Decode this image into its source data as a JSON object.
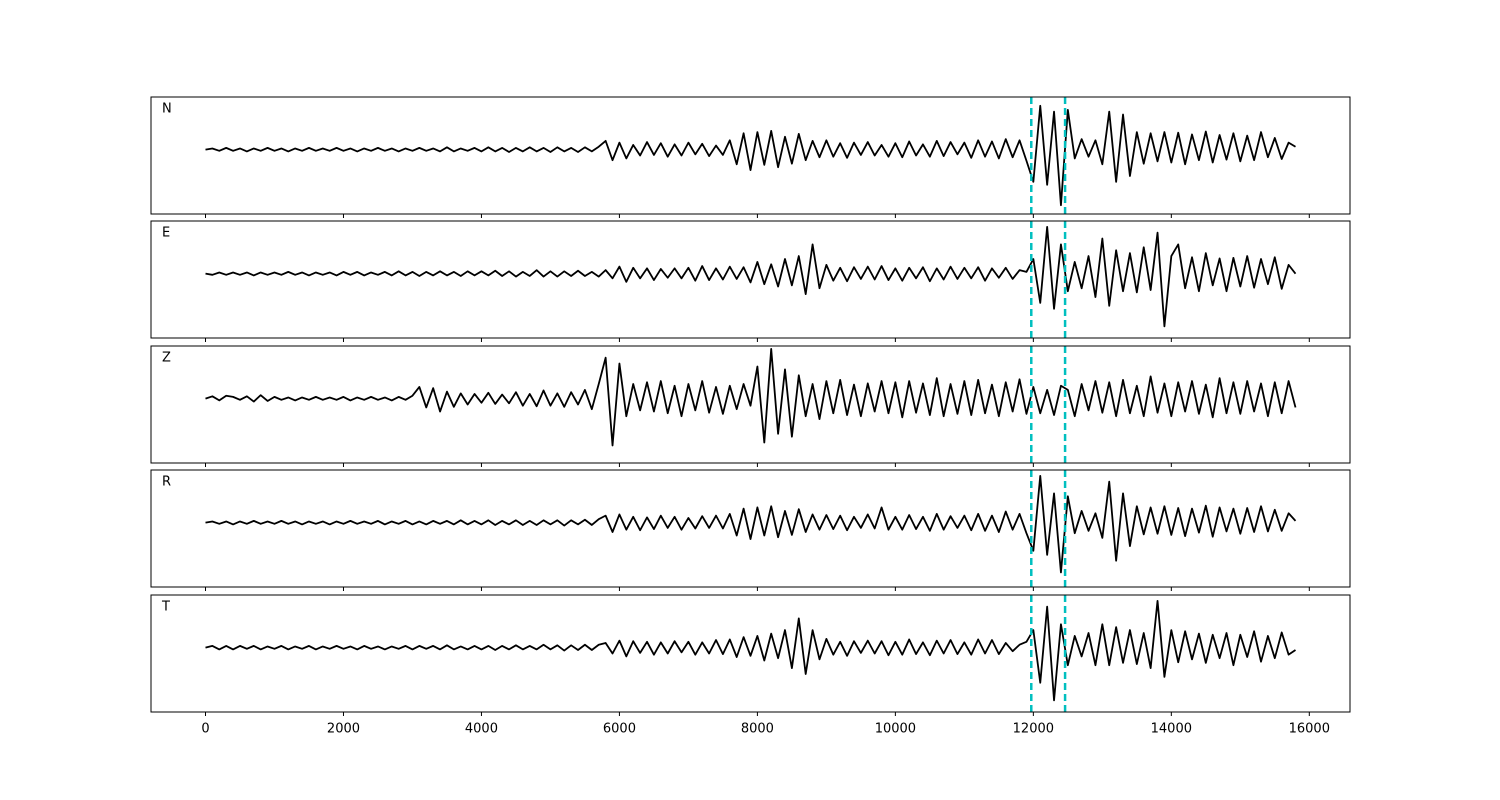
{
  "chart_data": {
    "type": "line",
    "layout": "stacked",
    "x": [
      0,
      100,
      200,
      300,
      400,
      500,
      600,
      700,
      800,
      900,
      1000,
      1100,
      1200,
      1300,
      1400,
      1500,
      1600,
      1700,
      1800,
      1900,
      2000,
      2100,
      2200,
      2300,
      2400,
      2500,
      2600,
      2700,
      2800,
      2900,
      3000,
      3100,
      3200,
      3300,
      3400,
      3500,
      3600,
      3700,
      3800,
      3900,
      4000,
      4100,
      4200,
      4300,
      4400,
      4500,
      4600,
      4700,
      4800,
      4900,
      5000,
      5100,
      5200,
      5300,
      5400,
      5500,
      5600,
      5700,
      5800,
      5900,
      6000,
      6100,
      6200,
      6300,
      6400,
      6500,
      6600,
      6700,
      6800,
      6900,
      7000,
      7100,
      7200,
      7300,
      7400,
      7500,
      7600,
      7700,
      7800,
      7900,
      8000,
      8100,
      8200,
      8300,
      8400,
      8500,
      8600,
      8700,
      8800,
      8900,
      9000,
      9100,
      9200,
      9300,
      9400,
      9500,
      9600,
      9700,
      9800,
      9900,
      10000,
      10100,
      10200,
      10300,
      10400,
      10500,
      10600,
      10700,
      10800,
      10900,
      11000,
      11100,
      11200,
      11300,
      11400,
      11500,
      11600,
      11700,
      11800,
      11900,
      12000,
      12100,
      12200,
      12300,
      12400,
      12500,
      12600,
      12700,
      12800,
      12900,
      13000,
      13100,
      13200,
      13300,
      13400,
      13500,
      13600,
      13700,
      13800,
      13900,
      14000,
      14100,
      14200,
      14300,
      14400,
      14500,
      14600,
      14700,
      14800,
      14900,
      15000,
      15100,
      15200,
      15300,
      15400,
      15500,
      15600,
      15700,
      15800
    ],
    "series": [
      {
        "name": "N",
        "color": "#000000",
        "values": [
          0,
          0.2,
          -0.2,
          0.3,
          -0.2,
          0.2,
          -0.3,
          0.2,
          -0.2,
          0.3,
          -0.2,
          0.2,
          -0.3,
          0.2,
          -0.2,
          0.3,
          -0.2,
          0.2,
          -0.2,
          0.3,
          -0.2,
          0.2,
          -0.3,
          0.2,
          -0.2,
          0.3,
          -0.2,
          0.2,
          -0.3,
          0.2,
          -0.2,
          0.3,
          -0.2,
          0.2,
          -0.3,
          0.4,
          -0.3,
          0.2,
          -0.2,
          0.3,
          -0.3,
          0.4,
          -0.3,
          0.3,
          -0.4,
          0.3,
          -0.3,
          0.4,
          -0.3,
          0.3,
          -0.4,
          0.4,
          -0.3,
          0.3,
          -0.4,
          0.4,
          -0.3,
          0.5,
          1.5,
          -1.8,
          1.2,
          -1.5,
          0.8,
          -1,
          1.3,
          -0.9,
          1.1,
          -1.2,
          0.9,
          -1,
          1.2,
          -0.8,
          1,
          -1.1,
          0.7,
          -0.9,
          1.6,
          -2.5,
          2.8,
          -3.5,
          3,
          -2.6,
          3.2,
          -3,
          2.2,
          -2.4,
          2.7,
          -1.8,
          1.5,
          -1.3,
          1.6,
          -1.2,
          1.1,
          -1.4,
          1.2,
          -0.9,
          1.3,
          -1,
          0.8,
          -1.2,
          1.1,
          -1.3,
          1.4,
          -1,
          0.9,
          -1.2,
          1.5,
          -1.1,
          1.3,
          -0.8,
          1.2,
          -1.4,
          1.6,
          -1.2,
          1.4,
          -1.5,
          1.8,
          -1.3,
          1.6,
          -1.9,
          -5.5,
          7.5,
          -6,
          6.5,
          -9.5,
          6.8,
          -1.5,
          1.8,
          -1.2,
          1.6,
          -2.5,
          6.5,
          -5.5,
          6,
          -4.5,
          3,
          -2.4,
          2.8,
          -2,
          3,
          -2.2,
          2.9,
          -2.5,
          2.6,
          -1.8,
          3.1,
          -2.2,
          2.5,
          -1.7,
          2.8,
          -2,
          2.4,
          -1.8,
          3,
          -1.3,
          2,
          -1.6,
          1.2,
          0.5
        ]
      },
      {
        "name": "E",
        "color": "#000000",
        "values": [
          0,
          -0.2,
          0.2,
          -0.2,
          0.2,
          -0.2,
          0.2,
          -0.3,
          0.2,
          -0.2,
          0.2,
          -0.2,
          0.3,
          -0.2,
          0.2,
          -0.3,
          0.2,
          -0.2,
          0.2,
          -0.3,
          0.3,
          -0.2,
          0.3,
          -0.3,
          0.2,
          -0.2,
          0.3,
          -0.3,
          0.4,
          -0.3,
          0.3,
          -0.4,
          0.3,
          -0.3,
          0.4,
          -0.3,
          0.3,
          -0.4,
          0.4,
          -0.3,
          0.4,
          -0.3,
          0.5,
          -0.4,
          0.4,
          -0.5,
          0.3,
          -0.4,
          0.6,
          -0.5,
          0.4,
          -0.5,
          0.4,
          -0.4,
          0.5,
          -0.4,
          0.3,
          -0.5,
          0.6,
          -0.8,
          1.2,
          -1.4,
          1,
          -0.8,
          0.9,
          -1.1,
          0.8,
          -0.7,
          0.9,
          -0.8,
          1,
          -1.2,
          1.3,
          -1.1,
          0.9,
          -1,
          1.2,
          -0.9,
          1.1,
          -1.5,
          2,
          -1.8,
          1.6,
          -2.2,
          2.5,
          -2,
          3,
          -3.5,
          5,
          -2.5,
          1.5,
          -1.2,
          1,
          -1.3,
          1.1,
          -0.9,
          1.2,
          -1,
          1.3,
          -1.1,
          0.9,
          -1.2,
          1,
          -0.8,
          1.1,
          -1.3,
          0.9,
          -1,
          1.2,
          -0.9,
          1,
          -0.8,
          1.1,
          -1.2,
          0.9,
          -0.7,
          1,
          -0.9,
          0.6,
          0.3,
          2.5,
          -5,
          8,
          -6,
          5,
          -3,
          2,
          -2.5,
          3,
          -4,
          6,
          -5.5,
          4,
          -3,
          3.5,
          -3.2,
          4.5,
          -2.8,
          7,
          -9,
          3,
          5,
          -2.5,
          2.8,
          -3,
          3.5,
          -2,
          2.6,
          -3,
          2.7,
          -2.2,
          3,
          -2.4,
          2.5,
          -1.8,
          2.8,
          -2.6,
          1.5,
          0
        ]
      },
      {
        "name": "Z",
        "color": "#000000",
        "values": [
          0,
          0.4,
          -0.3,
          0.5,
          0.3,
          -0.2,
          0.4,
          -0.5,
          0.6,
          -0.4,
          0.3,
          -0.2,
          0.2,
          -0.3,
          0.2,
          -0.2,
          0.3,
          -0.2,
          0.2,
          -0.2,
          0.3,
          -0.3,
          0.2,
          -0.2,
          0.3,
          -0.2,
          0.2,
          -0.3,
          0.3,
          -0.2,
          0.5,
          2,
          -1.5,
          1.8,
          -2.2,
          1.2,
          -1.4,
          0.9,
          -1,
          0.8,
          -0.7,
          1,
          -0.9,
          0.7,
          -0.8,
          1.1,
          -1.2,
          0.8,
          -1.3,
          1.4,
          -1.2,
          0.9,
          -1.4,
          1.1,
          -1,
          1.5,
          -1.8,
          2.5,
          7,
          -8,
          6,
          -3,
          2.5,
          -2,
          2.8,
          -2.2,
          3,
          -2.5,
          2.2,
          -3,
          2.5,
          -2,
          3,
          -2.4,
          2,
          -2.6,
          2.2,
          -1.8,
          2.5,
          -1.2,
          5.5,
          -7.5,
          8.5,
          -6,
          5,
          -6.5,
          4,
          -3,
          2.5,
          -3.5,
          3,
          -2.5,
          3.2,
          -2.8,
          2.4,
          -3,
          2.6,
          -2.2,
          3,
          -2.5,
          2.8,
          -3.2,
          3,
          -2.4,
          2.6,
          -2.8,
          3.5,
          -3,
          2.5,
          -2.6,
          3,
          -2.8,
          3.2,
          -2.5,
          2.4,
          -3,
          2.8,
          -2.2,
          3.3,
          -2.6,
          2,
          -2.5,
          1.5,
          -2.8,
          2.2,
          1.5,
          -3,
          2.5,
          -2,
          3,
          -2.4,
          2.8,
          -3,
          3.2,
          -2.5,
          2.2,
          -3,
          3.8,
          -2.4,
          2.6,
          -3,
          2.8,
          -2.2,
          3,
          -2.6,
          2.4,
          -3.2,
          3.5,
          -2.5,
          2.8,
          -2.6,
          3,
          -2.2,
          2.6,
          -3,
          2.8,
          -2.5,
          3,
          -1.5
        ]
      },
      {
        "name": "R",
        "color": "#000000",
        "values": [
          0,
          0.2,
          -0.2,
          0.2,
          -0.3,
          0.2,
          -0.2,
          0.3,
          -0.2,
          0.2,
          -0.2,
          0.3,
          -0.2,
          0.2,
          -0.3,
          0.2,
          -0.2,
          0.2,
          -0.3,
          0.2,
          -0.2,
          0.3,
          -0.2,
          0.2,
          -0.2,
          0.3,
          -0.3,
          0.2,
          -0.2,
          0.3,
          -0.3,
          0.2,
          -0.3,
          0.3,
          -0.2,
          0.3,
          -0.3,
          0.4,
          -0.3,
          0.3,
          -0.3,
          0.4,
          -0.4,
          0.3,
          -0.3,
          0.4,
          -0.4,
          0.3,
          -0.4,
          0.4,
          -0.3,
          0.4,
          -0.5,
          0.4,
          -0.3,
          0.5,
          -0.4,
          0.6,
          1.2,
          -1.6,
          1.4,
          -1.2,
          1,
          -1.3,
          0.9,
          -1.1,
          1.2,
          -0.9,
          1,
          -1.2,
          0.8,
          -1,
          1.1,
          -0.9,
          1.2,
          -1,
          1.5,
          -2.2,
          2.4,
          -2.8,
          2.6,
          -2.2,
          2.8,
          -2.5,
          2,
          -2.1,
          2.3,
          -1.6,
          1.4,
          -1.2,
          1.3,
          -1.1,
          1.2,
          -1.3,
          1,
          -0.9,
          1.4,
          -1,
          2.6,
          -1.2,
          1,
          -1.2,
          1.3,
          -1.1,
          1,
          -1.4,
          1.5,
          -1.2,
          1.1,
          -0.9,
          1.2,
          -1.3,
          1.5,
          -1.4,
          1.2,
          -1.6,
          1.9,
          -1.2,
          1.5,
          -1.8,
          -4.8,
          8,
          -5.5,
          5,
          -8.5,
          4.5,
          -1.8,
          2,
          -1.4,
          1.6,
          -2.6,
          7,
          -6.5,
          5,
          -4,
          2.8,
          -2,
          2.6,
          -1.9,
          2.8,
          -2.1,
          2.5,
          -2.3,
          2.4,
          -1.7,
          2.9,
          -2.4,
          2.6,
          -1.5,
          2.4,
          -1.9,
          2.5,
          -1.6,
          2.8,
          -1.5,
          2.2,
          -1.4,
          1.6,
          0.3
        ]
      },
      {
        "name": "T",
        "color": "#000000",
        "values": [
          0,
          0.3,
          -0.3,
          0.3,
          -0.3,
          0.3,
          -0.2,
          0.3,
          -0.3,
          0.2,
          -0.2,
          0.3,
          -0.3,
          0.2,
          -0.2,
          0.3,
          -0.3,
          0.2,
          -0.2,
          0.3,
          -0.2,
          0.2,
          -0.3,
          0.3,
          -0.2,
          0.2,
          -0.3,
          0.2,
          -0.2,
          0.3,
          -0.3,
          0.3,
          -0.2,
          0.3,
          -0.3,
          0.4,
          -0.3,
          0.2,
          -0.3,
          0.3,
          -0.3,
          0.3,
          -0.4,
          0.3,
          -0.3,
          0.4,
          -0.3,
          0.3,
          -0.3,
          0.5,
          -0.3,
          0.4,
          -0.5,
          0.4,
          -0.4,
          0.5,
          -0.4,
          0.5,
          0.8,
          -1,
          1.2,
          -1.5,
          1.1,
          -0.9,
          1,
          -1.2,
          0.9,
          -1,
          1.1,
          -0.8,
          1,
          -1.2,
          0.9,
          -1,
          1.3,
          -1.1,
          1.4,
          -1.6,
          1.8,
          -1.4,
          2,
          -2.2,
          2.4,
          -1.8,
          3,
          -3.5,
          5,
          -4.5,
          3,
          -2,
          1.5,
          -1.2,
          1,
          -1.4,
          1.1,
          -0.9,
          1.2,
          -1,
          1.1,
          -1.3,
          1,
          -1.2,
          1.4,
          -1.1,
          0.9,
          -1.3,
          1.2,
          -1,
          1.3,
          -1.1,
          0.9,
          -1.2,
          1.4,
          -1,
          1.3,
          -1.1,
          0.8,
          -0.6,
          0.5,
          1,
          3,
          -6,
          7,
          -9,
          4,
          -3,
          2,
          -1.5,
          2.5,
          -3,
          4,
          -3,
          3.5,
          -2.6,
          3,
          -2.8,
          2.5,
          -3.5,
          8,
          -5,
          3,
          -2.5,
          2.8,
          -2,
          2.4,
          -2.6,
          2.2,
          -1.8,
          2.5,
          -3,
          2.2,
          -1.6,
          2.8,
          -2.4,
          2,
          -1.8,
          2.6,
          -1.2,
          -0.4
        ]
      }
    ],
    "xlim": [
      -790,
      16590
    ],
    "xticks": [
      0,
      2000,
      4000,
      6000,
      8000,
      10000,
      12000,
      14000,
      16000
    ],
    "ylim": [
      -11,
      9
    ],
    "vlines": [
      11970,
      12460
    ],
    "vline_color": "#00bfbf"
  }
}
